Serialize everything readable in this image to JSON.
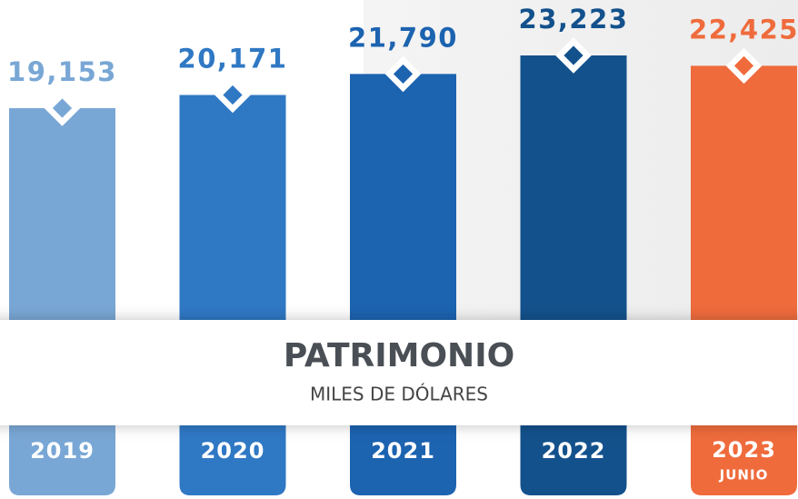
{
  "chart_data": {
    "type": "bar",
    "title": "PATRIMONIO",
    "subtitle": "MILES DE DÓLARES",
    "categories": [
      "2019",
      "2020",
      "2021",
      "2022",
      "2023"
    ],
    "category_sublabels": [
      null,
      null,
      null,
      null,
      "JUNIO"
    ],
    "values": [
      19153,
      20171,
      21790,
      23223,
      22425
    ],
    "value_labels": [
      "19,153",
      "20,171",
      "21,790",
      "23,223",
      "22,425"
    ],
    "colors": [
      "#79a7d5",
      "#2f78c4",
      "#1c63b0",
      "#13518c",
      "#ef6b3c"
    ]
  }
}
